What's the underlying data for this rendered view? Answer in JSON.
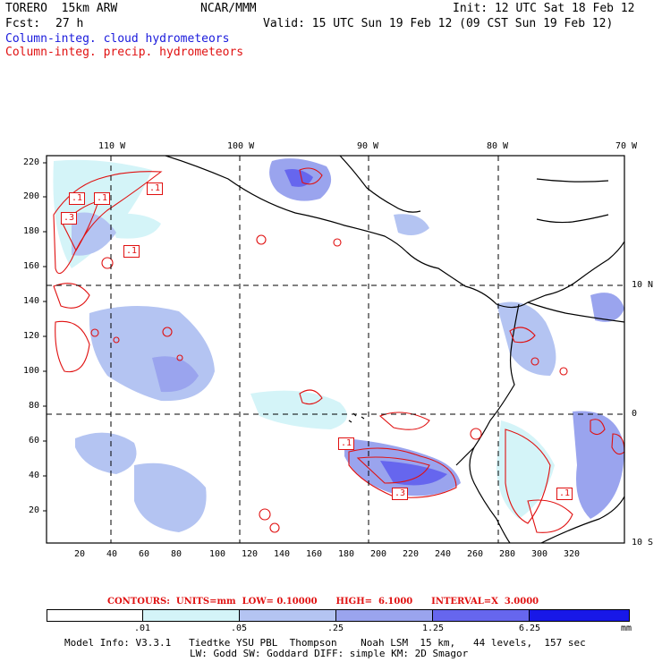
{
  "header": {
    "model_title": "TORERO  15km ARW",
    "center": "NCAR/MMM",
    "init": "Init: 12 UTC Sat 18 Feb 12",
    "fcst_label": "Fcst:",
    "fcst_value": "27 h",
    "valid": "Valid: 15 UTC Sun 19 Feb 12 (09 CST Sun 19 Feb 12)",
    "field1": "Column-integ. cloud hydrometeors",
    "field2": "Column-integ. precip. hydrometeors"
  },
  "map": {
    "lon_labels": [
      "110 W",
      "100 W",
      "90 W",
      "80 W",
      "70 W"
    ],
    "lat_labels": [
      "10 N",
      "0",
      "10 S"
    ],
    "y_ticks": [
      "220",
      "200",
      "180",
      "160",
      "140",
      "120",
      "100",
      "80",
      "60",
      "40",
      "20"
    ],
    "x_ticks": [
      "20",
      "40",
      "60",
      "80",
      "100",
      "120",
      "140",
      "160",
      "180",
      "200",
      "220",
      "240",
      "260",
      "280",
      "300",
      "320"
    ],
    "contour_labels": [
      ".1",
      ".1",
      ".1",
      ".3",
      ".1",
      ".1",
      ".3",
      ".1"
    ]
  },
  "legend": {
    "contours_info": "CONTOURS:  UNITS=mm  LOW= 0.10000      HIGH=  6.1000      INTERVAL=X  3.0000",
    "levels": [
      ".01",
      ".05",
      ".25",
      "1.25",
      "6.25"
    ],
    "units": "mm",
    "colors": [
      "#ffffff",
      "#d4f4f8",
      "#b4c4f2",
      "#9aa4ee",
      "#6666ee",
      "#3a3ae8",
      "#1818e8"
    ]
  },
  "footer": {
    "line1": "Model Info: V3.3.1   Tiedtke YSU PBL  Thompson    Noah LSM  15 km,   44 levels,  157 sec",
    "line2": "LW: Godd SW: Goddard DIFF: simple KM: 2D Smagor"
  }
}
